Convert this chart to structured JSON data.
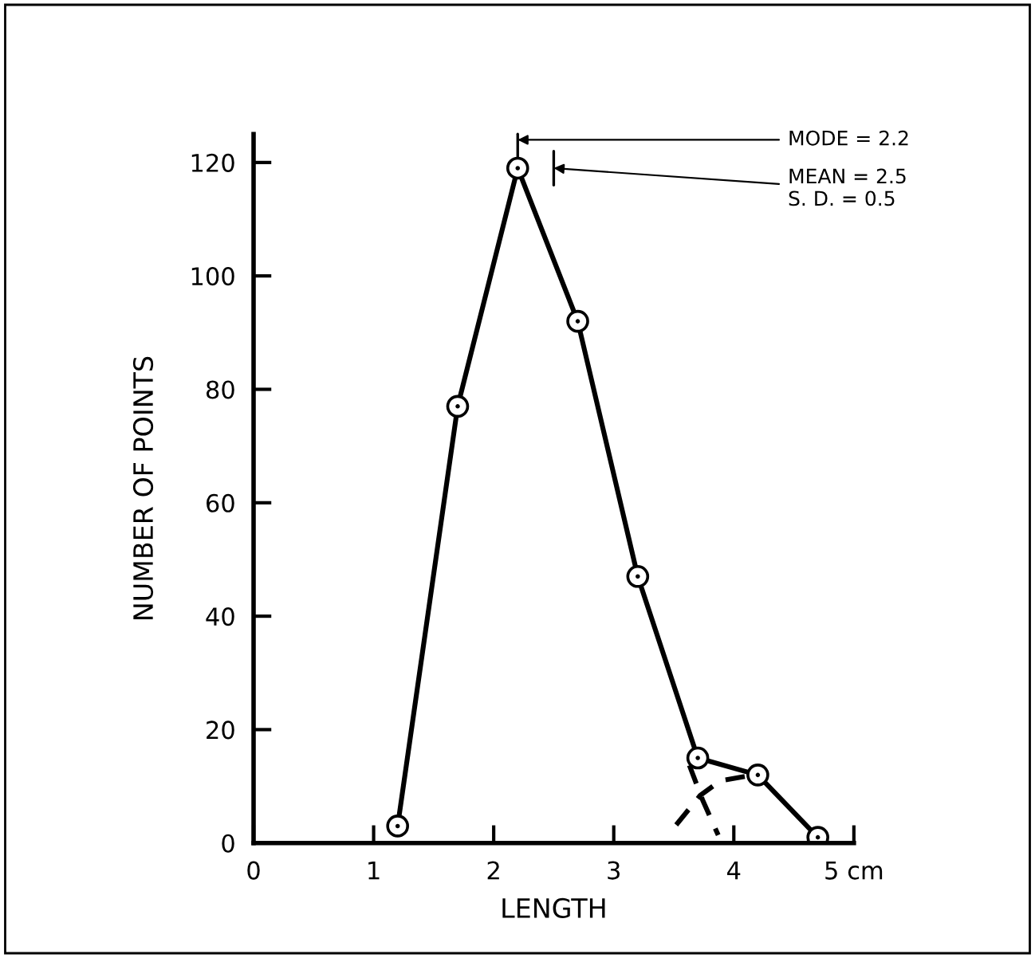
{
  "chart_data": {
    "type": "line",
    "xlabel": "LENGTH",
    "ylabel": "NUMBER OF POINTS",
    "xlim": [
      0,
      5
    ],
    "ylim": [
      0,
      125
    ],
    "xticks": [
      0,
      1,
      2,
      3,
      4,
      {
        "value": 5,
        "label": "5 cm"
      }
    ],
    "yticks": [
      0,
      20,
      40,
      60,
      80,
      100,
      120
    ],
    "grid": false,
    "series": [
      {
        "color": "#000000",
        "marker": "circle",
        "line_style": "solid",
        "x": [
          1.2,
          1.7,
          2.2,
          2.7,
          3.2,
          3.7,
          4.2,
          4.7
        ],
        "values": [
          3,
          77,
          119,
          92,
          47,
          15,
          12,
          1
        ]
      },
      {
        "color": "#000000",
        "marker": "none",
        "line_style": "dashed",
        "x": [
          3.52,
          3.72,
          3.89,
          4.11
        ],
        "values": [
          3.2,
          8.4,
          11,
          11.8
        ]
      },
      {
        "color": "#000000",
        "marker": "none",
        "line_style": "dashed",
        "x": [
          3.63,
          3.74,
          3.87
        ],
        "values": [
          13.7,
          7.6,
          1.4
        ]
      },
      {
        "color": "#000000",
        "marker": "none",
        "line_style": "solid",
        "x": [
          2.2,
          2.2
        ],
        "values": [
          121,
          125
        ]
      },
      {
        "color": "#000000",
        "marker": "none",
        "line_style": "solid",
        "x": [
          2.5,
          2.5
        ],
        "values": [
          116,
          122
        ]
      }
    ],
    "annotations": [
      {
        "text": "MODE = 2.2",
        "x": 2.2,
        "y": 124
      },
      {
        "text": "MEAN = 2.5\nS. D. = 0.5",
        "x": 2.5,
        "y": 119
      }
    ]
  }
}
